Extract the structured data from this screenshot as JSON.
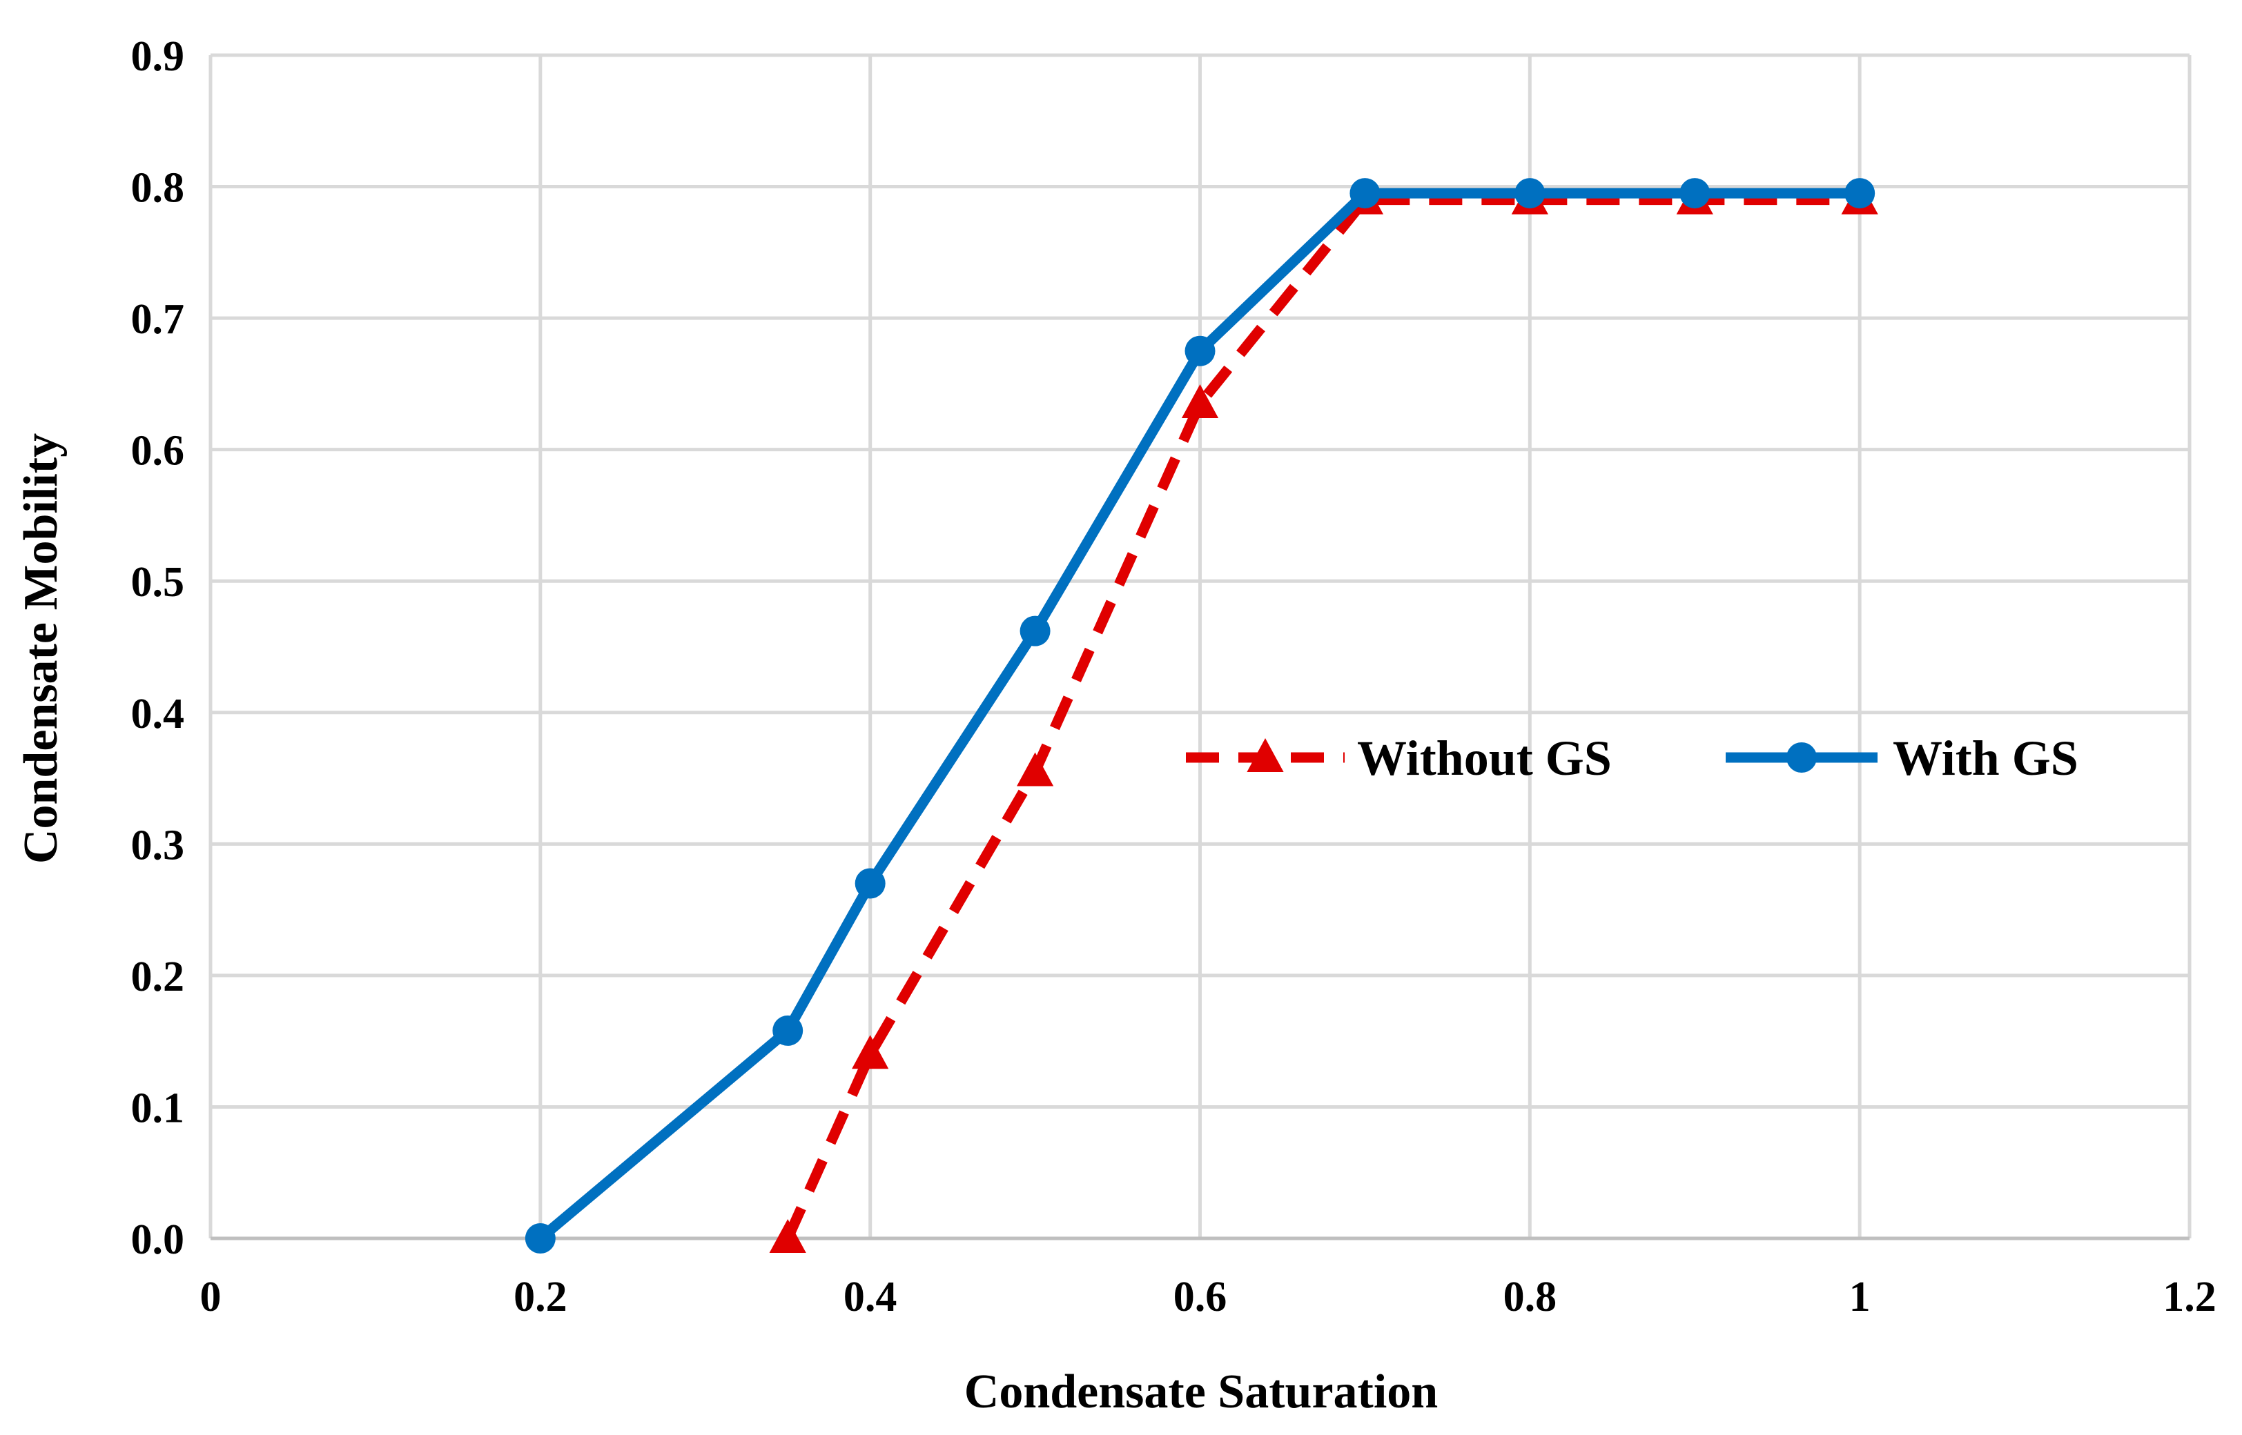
{
  "chart_data": {
    "type": "line",
    "title": "",
    "xlabel": "Condensate Saturation",
    "ylabel": "Condensate Mobility",
    "xlim": [
      0,
      1.2
    ],
    "ylim": [
      0,
      0.9
    ],
    "x_ticks": [
      "0",
      "0.2",
      "0.4",
      "0.6",
      "0.8",
      "1",
      "1.2"
    ],
    "y_ticks": [
      "0.0",
      "0.1",
      "0.2",
      "0.3",
      "0.4",
      "0.5",
      "0.6",
      "0.7",
      "0.8",
      "0.9"
    ],
    "x_tick_values": [
      0,
      0.2,
      0.4,
      0.6,
      0.8,
      1.0,
      1.2
    ],
    "y_tick_values": [
      0,
      0.1,
      0.2,
      0.3,
      0.4,
      0.5,
      0.6,
      0.7,
      0.8,
      0.9
    ],
    "grid": true,
    "legend_position": "center-right",
    "series": [
      {
        "name": "Without GS",
        "color": "#e00000",
        "line_style": "dashed",
        "marker": "triangle",
        "x": [
          0.35,
          0.4,
          0.5,
          0.6,
          0.7,
          0.8,
          0.9,
          1.0
        ],
        "y": [
          0.0,
          0.14,
          0.355,
          0.635,
          0.79,
          0.79,
          0.79,
          0.79
        ]
      },
      {
        "name": "With GS",
        "color": "#0070c0",
        "line_style": "solid",
        "marker": "circle",
        "x": [
          0.2,
          0.35,
          0.4,
          0.5,
          0.6,
          0.7,
          0.8,
          0.9,
          1.0
        ],
        "y": [
          0.0,
          0.158,
          0.27,
          0.462,
          0.675,
          0.795,
          0.795,
          0.795,
          0.795
        ]
      }
    ]
  }
}
